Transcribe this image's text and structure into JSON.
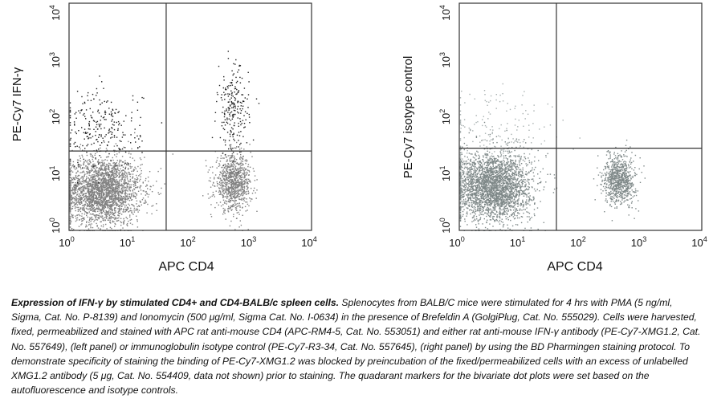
{
  "chart_data": [
    {
      "type": "scatter",
      "panel": "left",
      "xlabel": "APC CD4",
      "ylabel": "PE-Cy7 IFN-γ",
      "xscale": "log",
      "yscale": "log",
      "xlim": [
        1,
        10000
      ],
      "ylim": [
        1,
        10000
      ],
      "x_ticks": [
        "10^0",
        "10^1",
        "10^2",
        "10^3",
        "10^4"
      ],
      "y_ticks": [
        "10^0",
        "10^1",
        "10^2",
        "10^3",
        "10^4"
      ],
      "quadrant_gate": {
        "x": 40,
        "y": 25
      },
      "point_color": "#7f7f7f",
      "highlight_color": "#1a1a1a",
      "populations": [
        {
          "name_hidden": "CD4- IFN- dense",
          "x_center": 3.5,
          "y_center": 5,
          "x_spread": 0.32,
          "y_spread": 0.3,
          "count": 2600,
          "color": "#808080"
        },
        {
          "name_hidden": "CD4+ IFN- dense",
          "x_center": 500,
          "y_center": 7,
          "x_spread": 0.15,
          "y_spread": 0.24,
          "count": 900,
          "color": "#808080"
        },
        {
          "name_hidden": "CD4- IFN+ sparse",
          "x_center": 3.5,
          "y_center": 60,
          "x_spread": 0.32,
          "y_spread": 0.35,
          "count": 260,
          "color": "#222222"
        },
        {
          "name_hidden": "CD4+ IFN+ sparse",
          "x_center": 500,
          "y_center": 130,
          "x_spread": 0.13,
          "y_spread": 0.38,
          "count": 230,
          "color": "#222222"
        }
      ]
    },
    {
      "type": "scatter",
      "panel": "right",
      "xlabel": "APC CD4",
      "ylabel": "PE-Cy7 isotype control",
      "xscale": "log",
      "yscale": "log",
      "xlim": [
        1,
        10000
      ],
      "ylim": [
        1,
        10000
      ],
      "x_ticks": [
        "10^0",
        "10^1",
        "10^2",
        "10^3",
        "10^4"
      ],
      "y_ticks": [
        "10^0",
        "10^1",
        "10^2",
        "10^3",
        "10^4"
      ],
      "quadrant_gate": {
        "x": 40,
        "y": 28
      },
      "point_color": "#7f8a8a",
      "populations": [
        {
          "name_hidden": "CD4- dense",
          "x_center": 3.5,
          "y_center": 6,
          "x_spread": 0.32,
          "y_spread": 0.3,
          "count": 2800,
          "color": "#7e8888"
        },
        {
          "name_hidden": "CD4+ dense",
          "x_center": 430,
          "y_center": 8,
          "x_spread": 0.13,
          "y_spread": 0.22,
          "count": 800,
          "color": "#7e8888"
        },
        {
          "name_hidden": "background",
          "x_center": 4,
          "y_center": 40,
          "x_spread": 0.45,
          "y_spread": 0.45,
          "count": 220,
          "color": "#a8b0b0"
        }
      ]
    }
  ],
  "caption": {
    "bold": "Expression of IFN-γ by stimulated CD4+ and CD4-BALB/c spleen cells.",
    "text": " Splenocytes from BALB/C mice were stimulated for 4 hrs with PMA (5 ng/ml, Sigma, Cat. No. P-8139) and Ionomycin (500 μg/ml, Sigma Cat. No. I-0634) in the presence of Brefeldin A (GolgiPlug, Cat. No. 555029). Cells were harvested, fixed, permeabilized and stained with APC rat anti-mouse CD4 (APC-RM4-5, Cat. No. 553051) and either rat anti-mouse IFN-γ antibody (PE-Cy7-XMG1.2, Cat. No. 557649), (left panel) or immunoglobulin isotype control (PE-Cy7-R3-34, Cat. No. 557645), (right panel) by using the BD Pharmingen staining protocol. To demonstrate specificity of staining the binding of PE-Cy7-XMG1.2 was blocked by preincubation of the fixed/permeabilized cells with an excess of unlabelled XMG1.2 antibody (5 μg, Cat. No. 554409, data not shown) prior to staining. The quadarant markers for the bivariate dot plots were set based on the autofluorescence and isotype controls."
  }
}
